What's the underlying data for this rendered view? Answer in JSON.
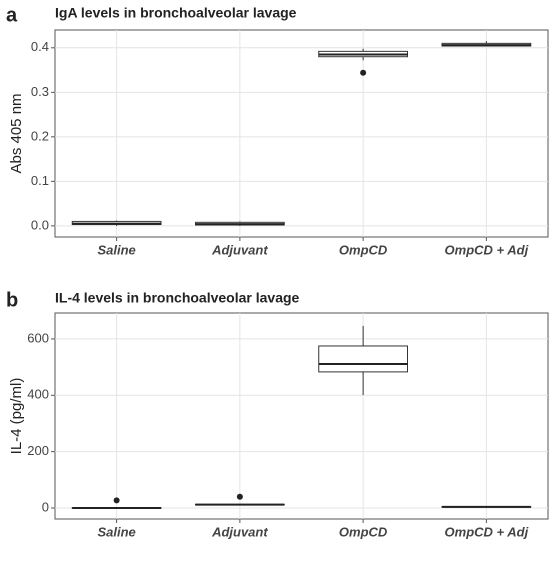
{
  "chart_data": [
    {
      "type": "box",
      "panel": "a",
      "title": "IgA levels in bronchoalveolar lavage",
      "y_label": "Abs 405 nm",
      "categories": [
        "Saline",
        "Adjuvant",
        "OmpCD",
        "OmpCD + Adj"
      ],
      "min": [
        0,
        0,
        0.372,
        0.403
      ],
      "q1": [
        0.003,
        0.002,
        0.38,
        0.404
      ],
      "median": [
        0.005,
        0.004,
        0.385,
        0.406
      ],
      "q3": [
        0.01,
        0.008,
        0.392,
        0.41
      ],
      "max": [
        0.012,
        0.01,
        0.398,
        0.415
      ],
      "outliers": [
        [],
        [],
        [
          0.344
        ],
        []
      ],
      "ylim": [
        -0.025,
        0.44
      ],
      "yticks": [
        {
          "value": 0,
          "label": "0.0"
        },
        0.1,
        0.2,
        0.3,
        0.4
      ],
      "grid": true
    },
    {
      "type": "box",
      "panel": "b",
      "title": "IL-4 levels in bronchoalveolar lavage",
      "y_label": "IL-4 (pg/ml)",
      "categories": [
        "Saline",
        "Adjuvant",
        "OmpCD",
        "OmpCD + Adj"
      ],
      "min": [
        0,
        10,
        401,
        2
      ],
      "q1": [
        0,
        11,
        483,
        3
      ],
      "median": [
        0,
        12,
        511,
        4
      ],
      "q3": [
        1,
        13,
        575,
        5
      ],
      "max": [
        2,
        14,
        646,
        6
      ],
      "outliers": [
        [
          27
        ],
        [
          40
        ],
        [],
        []
      ],
      "ylim": [
        -39,
        692
      ],
      "yticks": [
        0,
        200,
        400,
        600
      ],
      "grid": true
    }
  ]
}
